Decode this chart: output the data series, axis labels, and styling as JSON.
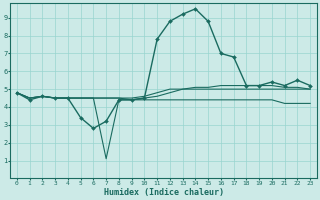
{
  "xlabel": "Humidex (Indice chaleur)",
  "bg_color": "#cceae7",
  "grid_color": "#99d5d0",
  "line_color": "#1a6b60",
  "xlim": [
    -0.5,
    23.5
  ],
  "ylim": [
    0,
    9.8
  ],
  "yticks": [
    1,
    2,
    3,
    4,
    5,
    6,
    7,
    8,
    9
  ],
  "xticks": [
    0,
    1,
    2,
    3,
    4,
    5,
    6,
    7,
    8,
    9,
    10,
    11,
    12,
    13,
    14,
    15,
    16,
    17,
    18,
    19,
    20,
    21,
    22,
    23
  ],
  "series": [
    {
      "y": [
        4.8,
        4.4,
        4.6,
        4.5,
        4.5,
        3.4,
        2.8,
        3.2,
        4.4,
        4.4,
        4.5,
        7.8,
        8.8,
        9.2,
        9.5,
        8.8,
        7.0,
        6.8,
        5.2,
        5.2,
        5.4,
        5.2,
        5.5,
        5.2
      ],
      "marker": true,
      "lw": 1.0
    },
    {
      "y": [
        4.8,
        4.5,
        4.6,
        4.5,
        4.5,
        4.5,
        4.5,
        1.1,
        4.4,
        4.4,
        4.4,
        4.4,
        4.4,
        4.4,
        4.4,
        4.4,
        4.4,
        4.4,
        4.4,
        4.4,
        4.4,
        4.2,
        4.2,
        4.2
      ],
      "marker": false,
      "lw": 0.8
    },
    {
      "y": [
        4.8,
        4.5,
        4.6,
        4.5,
        4.5,
        4.5,
        4.5,
        4.5,
        4.5,
        4.4,
        4.5,
        4.6,
        4.8,
        5.0,
        5.1,
        5.1,
        5.2,
        5.2,
        5.2,
        5.2,
        5.2,
        5.1,
        5.1,
        5.0
      ],
      "marker": false,
      "lw": 0.8
    },
    {
      "y": [
        4.8,
        4.5,
        4.6,
        4.5,
        4.5,
        4.5,
        4.5,
        4.5,
        4.5,
        4.5,
        4.6,
        4.8,
        5.0,
        5.0,
        5.0,
        5.0,
        5.0,
        5.0,
        5.0,
        5.0,
        5.0,
        5.0,
        5.0,
        5.0
      ],
      "marker": false,
      "lw": 0.8
    }
  ]
}
